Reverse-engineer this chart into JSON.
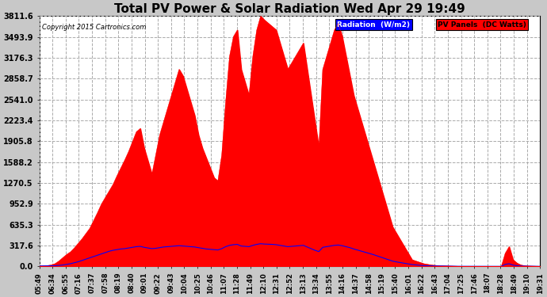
{
  "title": "Total PV Power & Solar Radiation Wed Apr 29 19:49",
  "copyright": "Copyright 2015 Cartronics.com",
  "legend_radiation": "Radiation  (W/m2)",
  "legend_pv": "PV Panels  (DC Watts)",
  "yticks": [
    0.0,
    317.6,
    635.3,
    952.9,
    1270.5,
    1588.2,
    1905.8,
    2223.4,
    2541.0,
    2858.7,
    3176.3,
    3493.9,
    3811.6
  ],
  "ymax": 3811.6,
  "background_color": "#c8c8c8",
  "plot_bg_color": "#ffffff",
  "grid_color": "#aaaaaa",
  "red_color": "#ff0000",
  "blue_color": "#0000ff",
  "title_fontsize": 11,
  "xtick_labels": [
    "05:49",
    "06:34",
    "06:55",
    "07:16",
    "07:37",
    "07:58",
    "08:19",
    "08:40",
    "09:01",
    "09:22",
    "09:43",
    "10:04",
    "10:25",
    "10:46",
    "11:07",
    "11:28",
    "11:49",
    "12:10",
    "12:31",
    "12:52",
    "13:13",
    "13:34",
    "13:55",
    "14:16",
    "14:37",
    "14:58",
    "15:19",
    "15:40",
    "16:01",
    "16:22",
    "16:43",
    "17:04",
    "17:25",
    "17:46",
    "18:07",
    "18:28",
    "18:49",
    "19:10",
    "19:31"
  ],
  "pv_values": [
    5,
    8,
    12,
    20,
    40,
    80,
    130,
    180,
    220,
    280,
    350,
    420,
    500,
    580,
    700,
    820,
    950,
    1050,
    1150,
    1250,
    1380,
    1500,
    1620,
    1750,
    1900,
    2050,
    2100,
    1800,
    1600,
    1400,
    1700,
    2000,
    2200,
    2400,
    2600,
    2800,
    3000,
    2900,
    2700,
    2500,
    2300,
    2000,
    1800,
    1650,
    1500,
    1350,
    1300,
    1700,
    2500,
    3200,
    3500,
    3600,
    3000,
    2800,
    2600,
    3200,
    3600,
    3811,
    3750,
    3700,
    3650,
    3600,
    3400,
    3200,
    3000,
    3100,
    3200,
    3300,
    3400,
    3000,
    2600,
    2200,
    1800,
    3000,
    3200,
    3400,
    3600,
    3700,
    3500,
    3200,
    2900,
    2600,
    2400,
    2200,
    2000,
    1800,
    1600,
    1400,
    1200,
    1000,
    800,
    600,
    500,
    400,
    300,
    200,
    100,
    80,
    60,
    40,
    30,
    20,
    15,
    10,
    8,
    5,
    3,
    2,
    1,
    0,
    0,
    0,
    0,
    0,
    0,
    0,
    0,
    0,
    0,
    0,
    200,
    300,
    100,
    50,
    20,
    10,
    5,
    3,
    2,
    1
  ],
  "radiation_values": [
    5,
    6,
    7,
    8,
    10,
    15,
    20,
    30,
    40,
    55,
    70,
    90,
    110,
    130,
    150,
    170,
    190,
    210,
    230,
    245,
    255,
    265,
    270,
    280,
    290,
    300,
    305,
    290,
    280,
    270,
    275,
    285,
    295,
    300,
    305,
    310,
    315,
    310,
    305,
    300,
    295,
    285,
    275,
    265,
    260,
    255,
    250,
    270,
    300,
    320,
    330,
    335,
    310,
    305,
    300,
    320,
    335,
    345,
    340,
    338,
    335,
    330,
    320,
    310,
    300,
    305,
    310,
    315,
    320,
    295,
    270,
    245,
    225,
    290,
    300,
    310,
    320,
    325,
    315,
    300,
    285,
    265,
    248,
    232,
    215,
    198,
    180,
    160,
    140,
    120,
    100,
    80,
    68,
    58,
    48,
    38,
    28,
    22,
    16,
    12,
    9,
    7,
    6,
    5,
    4,
    3,
    2,
    2,
    1,
    1,
    0,
    0,
    0,
    0,
    0,
    0,
    0,
    0,
    0,
    0,
    30,
    40,
    20,
    10,
    5,
    3,
    2,
    1,
    1,
    0
  ]
}
